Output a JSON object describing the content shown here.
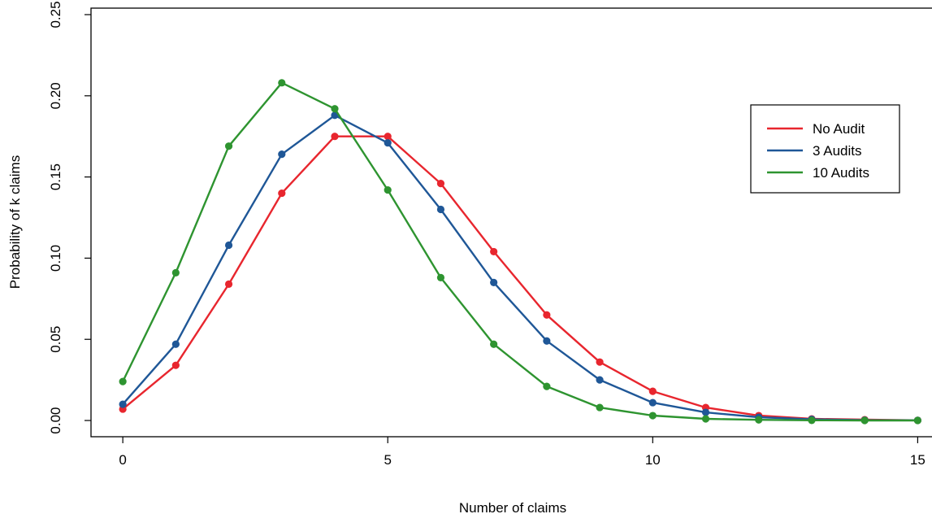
{
  "chart_data": {
    "type": "line",
    "title": "",
    "xlabel": "Number of claims",
    "ylabel": "Probability of k claims",
    "xlim": [
      -0.6,
      15.5
    ],
    "ylim": [
      -0.01,
      0.254
    ],
    "x_ticks": [
      0,
      5,
      10,
      15
    ],
    "x_tick_labels": [
      "0",
      "5",
      "10",
      "15"
    ],
    "y_ticks": [
      0.0,
      0.05,
      0.1,
      0.15,
      0.2,
      0.25
    ],
    "y_tick_labels": [
      "0.00",
      "0.05",
      "0.10",
      "0.15",
      "0.20",
      "0.25"
    ],
    "grid": false,
    "legend_position": "top-right",
    "series": [
      {
        "name": "No Audit",
        "color": "#e8262e",
        "x": [
          0,
          1,
          2,
          3,
          4,
          5,
          6,
          7,
          8,
          9,
          10,
          11,
          12,
          13,
          14,
          15
        ],
        "values": [
          0.007,
          0.034,
          0.084,
          0.14,
          0.175,
          0.175,
          0.146,
          0.104,
          0.065,
          0.036,
          0.018,
          0.008,
          0.003,
          0.001,
          0.0005,
          0.0001
        ]
      },
      {
        "name": "3 Audits",
        "color": "#1f5797",
        "x": [
          0,
          1,
          2,
          3,
          4,
          5,
          6,
          7,
          8,
          9,
          10,
          11,
          12,
          13,
          14,
          15
        ],
        "values": [
          0.01,
          0.047,
          0.108,
          0.164,
          0.188,
          0.171,
          0.13,
          0.085,
          0.049,
          0.025,
          0.011,
          0.005,
          0.002,
          0.0007,
          0.0002,
          0.0001
        ]
      },
      {
        "name": "10 Audits",
        "color": "#2e9430",
        "x": [
          0,
          1,
          2,
          3,
          4,
          5,
          6,
          7,
          8,
          9,
          10,
          11,
          12,
          13,
          14,
          15
        ],
        "values": [
          0.024,
          0.091,
          0.169,
          0.208,
          0.192,
          0.142,
          0.088,
          0.047,
          0.021,
          0.008,
          0.003,
          0.001,
          0.0004,
          0.0001,
          3e-05,
          1e-05
        ]
      }
    ]
  }
}
